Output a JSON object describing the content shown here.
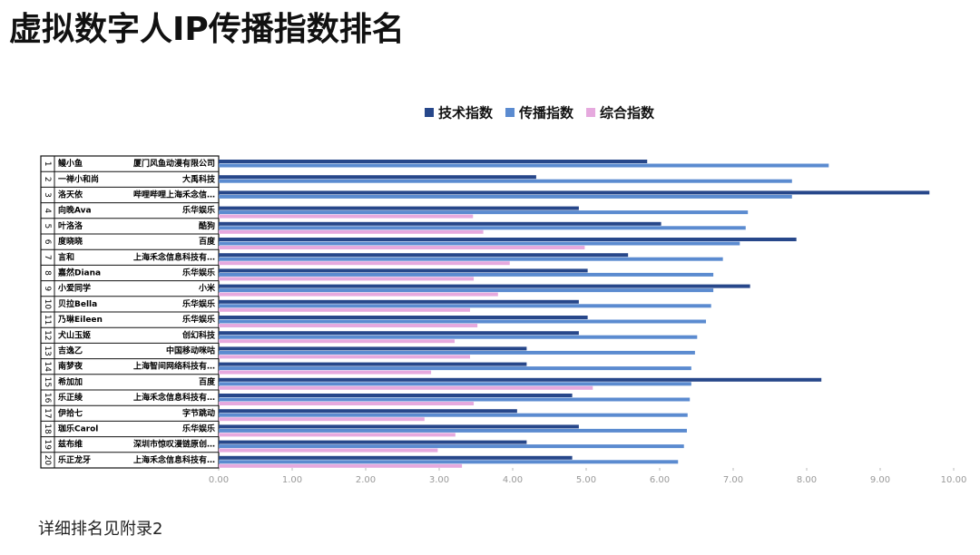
{
  "chart_data": {
    "type": "hbar",
    "title": "虚拟数字人IP传播指数排名",
    "footnote": "详细排名见附录2",
    "ranks": [
      1,
      2,
      3,
      4,
      5,
      6,
      7,
      8,
      9,
      10,
      11,
      12,
      13,
      14,
      15,
      16,
      17,
      18,
      19,
      20
    ],
    "categories": [
      "鳗小鱼",
      "一禅小和尚",
      "洛天依",
      "向晚Ava",
      "叶洛洛",
      "度晓晓",
      "言和",
      "嘉然Diana",
      "小爱同学",
      "贝拉Bella",
      "乃琳Eileen",
      "犬山玉姬",
      "吉逸乙",
      "南梦夜",
      "希加加",
      "乐正绫",
      "伊拾七",
      "珈乐Carol",
      "兹布维",
      "乐正龙牙"
    ],
    "companies": [
      "厦门风鱼动漫有限公司",
      "大禹科技",
      "哔哩哔哩上海禾念信…",
      "乐华娱乐",
      "酷狗",
      "百度",
      "上海禾念信息科技有…",
      "乐华娱乐",
      "小米",
      "乐华娱乐",
      "乐华娱乐",
      "创幻科技",
      "中国移动咪咕",
      "上海智间网络科技有…",
      "百度",
      "上海禾念信息科技有…",
      "字节跳动",
      "乐华娱乐",
      "深圳市惊叹漫链原创…",
      "上海禾念信息科技有…"
    ],
    "series": [
      {
        "name": "技术指数",
        "color": "#27478a",
        "values": [
          5.83,
          4.32,
          9.67,
          4.9,
          6.02,
          7.86,
          5.57,
          5.02,
          7.23,
          4.9,
          5.02,
          4.9,
          4.19,
          4.19,
          8.2,
          4.81,
          4.06,
          4.9,
          4.19,
          4.81
        ]
      },
      {
        "name": "传播指数",
        "color": "#5b8bd0",
        "values": [
          8.3,
          7.8,
          7.8,
          7.2,
          7.17,
          7.09,
          6.86,
          6.73,
          6.73,
          6.7,
          6.63,
          6.51,
          6.48,
          6.43,
          6.43,
          6.41,
          6.38,
          6.37,
          6.33,
          6.25
        ]
      },
      {
        "name": "综合指数",
        "color": "#e6a9de",
        "values": [
          null,
          null,
          null,
          3.46,
          3.6,
          4.98,
          3.96,
          3.47,
          3.8,
          3.42,
          3.52,
          3.21,
          3.42,
          2.89,
          5.09,
          3.47,
          2.8,
          3.22,
          2.98,
          3.31
        ]
      }
    ],
    "xlim": [
      0,
      10
    ],
    "xticks": [
      {
        "value": 0,
        "label": "0.00"
      },
      {
        "value": 1,
        "label": "1.00"
      },
      {
        "value": 2,
        "label": "2.00"
      },
      {
        "value": 3,
        "label": "3.00"
      },
      {
        "value": 4,
        "label": "4.00"
      },
      {
        "value": 5,
        "label": "5.00"
      },
      {
        "value": 6,
        "label": "6.00"
      },
      {
        "value": 7,
        "label": "7.00"
      },
      {
        "value": 8,
        "label": "8.00"
      },
      {
        "value": 9,
        "label": "9.00"
      },
      {
        "value": 10,
        "label": "10.00"
      }
    ],
    "legend": "top"
  }
}
